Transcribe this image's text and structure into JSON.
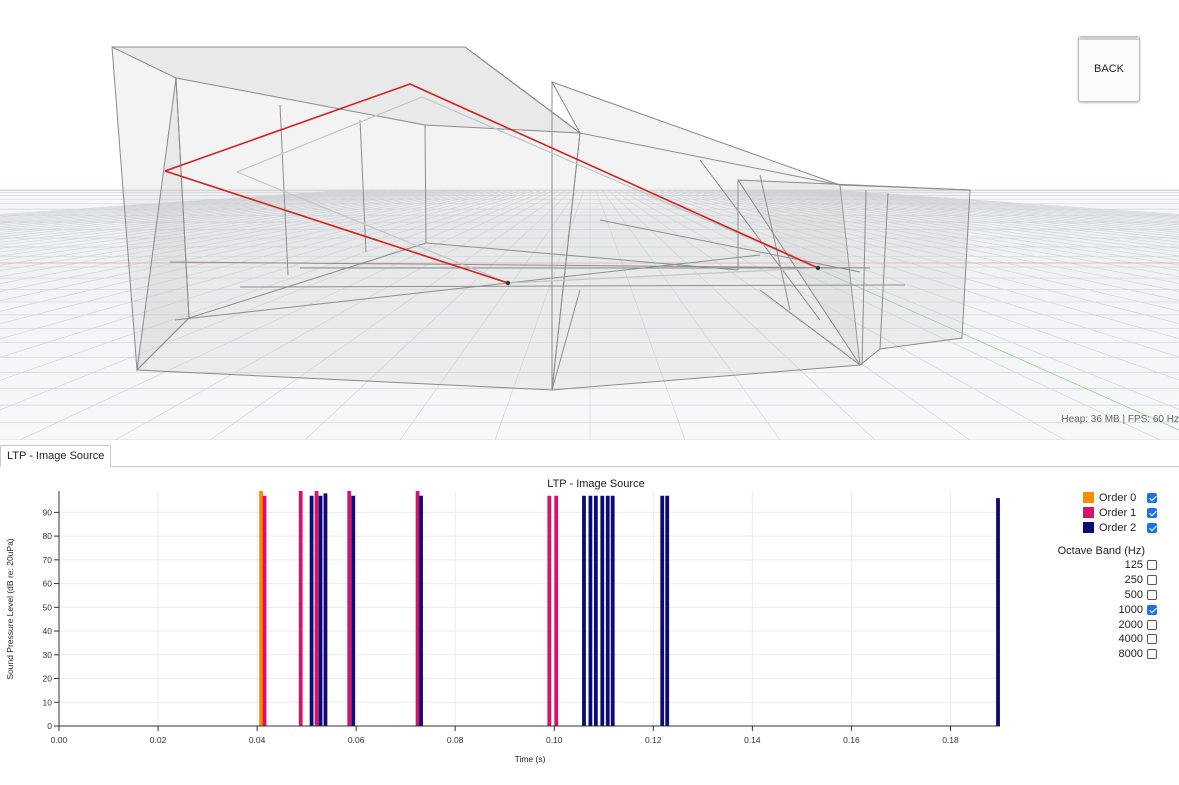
{
  "viewport": {
    "back_label": "BACK",
    "perf_text": "Heap: 36 MB | FPS: 60 Hz"
  },
  "tabs": [
    {
      "label": "LTP - Image Source"
    }
  ],
  "legend": {
    "orders": [
      {
        "label": "Order 0",
        "color": "#ff8c00",
        "checked": true
      },
      {
        "label": "Order 1",
        "color": "#d6136b",
        "checked": true
      },
      {
        "label": "Order 2",
        "color": "#0a0a78",
        "checked": true
      }
    ],
    "octave_title": "Octave Band (Hz)",
    "octave_bands": [
      {
        "label": "125",
        "checked": false
      },
      {
        "label": "250",
        "checked": false
      },
      {
        "label": "500",
        "checked": false
      },
      {
        "label": "1000",
        "checked": true
      },
      {
        "label": "2000",
        "checked": false
      },
      {
        "label": "4000",
        "checked": false
      },
      {
        "label": "8000",
        "checked": false
      }
    ]
  },
  "chart_data": {
    "type": "bar",
    "title": "LTP - Image Source",
    "xlabel": "Time (s)",
    "ylabel": "Sound Pressure Level (dB re: 20uPa)",
    "xlim": [
      0,
      0.19
    ],
    "ylim": [
      0,
      99
    ],
    "x_ticks": [
      "0.00",
      "0.02",
      "0.04",
      "0.06",
      "0.08",
      "0.10",
      "0.12",
      "0.14",
      "0.16",
      "0.18"
    ],
    "y_ticks": [
      "0",
      "10",
      "20",
      "30",
      "40",
      "50",
      "60",
      "70",
      "80",
      "90"
    ],
    "grid": true,
    "series": [
      {
        "name": "Order 0",
        "color": "#ff8c00",
        "points": [
          [
            0.0408,
            99
          ]
        ]
      },
      {
        "name": "Order 1",
        "color": "#d6136b",
        "points": [
          [
            0.0415,
            97
          ],
          [
            0.0488,
            99
          ],
          [
            0.052,
            99
          ],
          [
            0.0586,
            99
          ],
          [
            0.0724,
            99
          ],
          [
            0.099,
            97
          ],
          [
            0.1004,
            97
          ]
        ]
      },
      {
        "name": "Order 2",
        "color": "#0a0a78",
        "points": [
          [
            0.051,
            97
          ],
          [
            0.0528,
            97
          ],
          [
            0.0538,
            98
          ],
          [
            0.0594,
            97
          ],
          [
            0.0731,
            97
          ],
          [
            0.106,
            97
          ],
          [
            0.1073,
            97
          ],
          [
            0.1084,
            97
          ],
          [
            0.1097,
            97
          ],
          [
            0.1108,
            97
          ],
          [
            0.1118,
            97
          ],
          [
            0.1218,
            97
          ],
          [
            0.1228,
            97
          ],
          [
            0.1896,
            96
          ]
        ]
      }
    ]
  }
}
